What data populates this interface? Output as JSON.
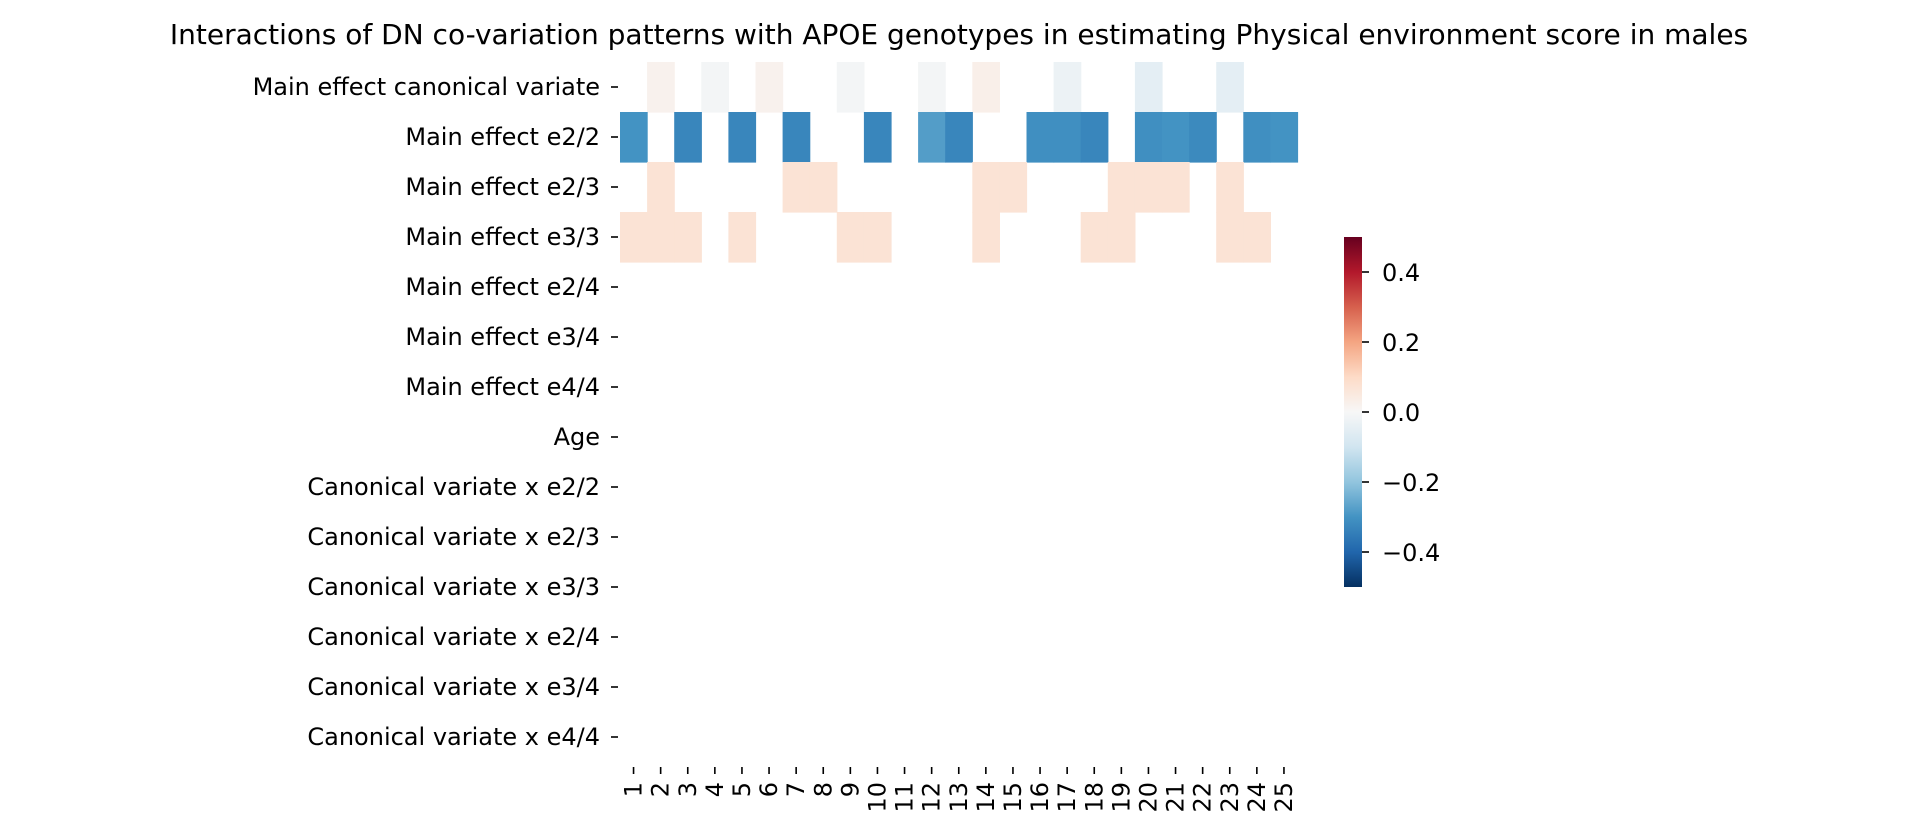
{
  "chart_data": {
    "type": "heatmap",
    "title": "Interactions of DN co-variation patterns with APOE genotypes in estimating Physical environment score in males",
    "rows": [
      "Main effect canonical variate",
      "Main effect e2/2",
      "Main effect e2/3",
      "Main effect e3/3",
      "Main effect e2/4",
      "Main effect e3/4",
      "Main effect e4/4",
      "Age",
      "Canonical variate x e2/2",
      "Canonical variate x e2/3",
      "Canonical variate x e3/3",
      "Canonical variate x e2/4",
      "Canonical variate x e3/4",
      "Canonical variate x e4/4"
    ],
    "columns": [
      "1",
      "2",
      "3",
      "4",
      "5",
      "6",
      "7",
      "8",
      "9",
      "10",
      "11",
      "12",
      "13",
      "14",
      "15",
      "16",
      "17",
      "18",
      "19",
      "20",
      "21",
      "22",
      "23",
      "24",
      "25"
    ],
    "values": [
      [
        null,
        0.02,
        null,
        -0.01,
        null,
        0.02,
        null,
        null,
        -0.01,
        null,
        null,
        -0.01,
        null,
        0.03,
        null,
        null,
        -0.03,
        null,
        null,
        -0.05,
        null,
        null,
        -0.05,
        null,
        null
      ],
      [
        -0.3,
        null,
        -0.33,
        null,
        -0.33,
        null,
        -0.33,
        null,
        null,
        -0.33,
        null,
        -0.28,
        -0.33,
        null,
        null,
        -0.31,
        -0.31,
        -0.33,
        null,
        -0.31,
        -0.3,
        -0.32,
        null,
        -0.31,
        -0.3
      ],
      [
        null,
        0.07,
        null,
        null,
        null,
        null,
        0.07,
        0.07,
        null,
        null,
        null,
        null,
        null,
        0.07,
        0.07,
        null,
        null,
        null,
        0.07,
        0.07,
        0.07,
        null,
        0.07,
        null,
        null
      ],
      [
        0.07,
        0.07,
        0.07,
        null,
        0.07,
        null,
        null,
        null,
        0.07,
        0.07,
        null,
        null,
        null,
        0.07,
        null,
        null,
        null,
        0.07,
        0.07,
        null,
        null,
        null,
        0.07,
        0.07,
        null
      ],
      [
        null,
        null,
        null,
        null,
        null,
        null,
        null,
        null,
        null,
        null,
        null,
        null,
        null,
        null,
        null,
        null,
        null,
        null,
        null,
        null,
        null,
        null,
        null,
        null,
        null
      ],
      [
        null,
        null,
        null,
        null,
        null,
        null,
        null,
        null,
        null,
        null,
        null,
        null,
        null,
        null,
        null,
        null,
        null,
        null,
        null,
        null,
        null,
        null,
        null,
        null,
        null
      ],
      [
        null,
        null,
        null,
        null,
        null,
        null,
        null,
        null,
        null,
        null,
        null,
        null,
        null,
        null,
        null,
        null,
        null,
        null,
        null,
        null,
        null,
        null,
        null,
        null,
        null
      ],
      [
        null,
        null,
        null,
        null,
        null,
        null,
        null,
        null,
        null,
        null,
        null,
        null,
        null,
        null,
        null,
        null,
        null,
        null,
        null,
        null,
        null,
        null,
        null,
        null,
        null
      ],
      [
        null,
        null,
        null,
        null,
        null,
        null,
        null,
        null,
        null,
        null,
        null,
        null,
        null,
        null,
        null,
        null,
        null,
        null,
        null,
        null,
        null,
        null,
        null,
        null,
        null
      ],
      [
        null,
        null,
        null,
        null,
        null,
        null,
        null,
        null,
        null,
        null,
        null,
        null,
        null,
        null,
        null,
        null,
        null,
        null,
        null,
        null,
        null,
        null,
        null,
        null,
        null
      ],
      [
        null,
        null,
        null,
        null,
        null,
        null,
        null,
        null,
        null,
        null,
        null,
        null,
        null,
        null,
        null,
        null,
        null,
        null,
        null,
        null,
        null,
        null,
        null,
        null,
        null
      ],
      [
        null,
        null,
        null,
        null,
        null,
        null,
        null,
        null,
        null,
        null,
        null,
        null,
        null,
        null,
        null,
        null,
        null,
        null,
        null,
        null,
        null,
        null,
        null,
        null,
        null
      ],
      [
        null,
        null,
        null,
        null,
        null,
        null,
        null,
        null,
        null,
        null,
        null,
        null,
        null,
        null,
        null,
        null,
        null,
        null,
        null,
        null,
        null,
        null,
        null,
        null,
        null
      ],
      [
        null,
        null,
        null,
        null,
        null,
        null,
        null,
        null,
        null,
        null,
        null,
        null,
        null,
        null,
        null,
        null,
        null,
        null,
        null,
        null,
        null,
        null,
        null,
        null,
        null
      ]
    ],
    "colorbar": {
      "colormap": "RdBu_r",
      "vmin": -0.5,
      "vmax": 0.5,
      "ticks": [
        0.4,
        0.2,
        0.0,
        -0.2,
        -0.4
      ],
      "tick_labels": [
        "0.4",
        "0.2",
        "0.0",
        "−0.2",
        "−0.4"
      ]
    }
  }
}
